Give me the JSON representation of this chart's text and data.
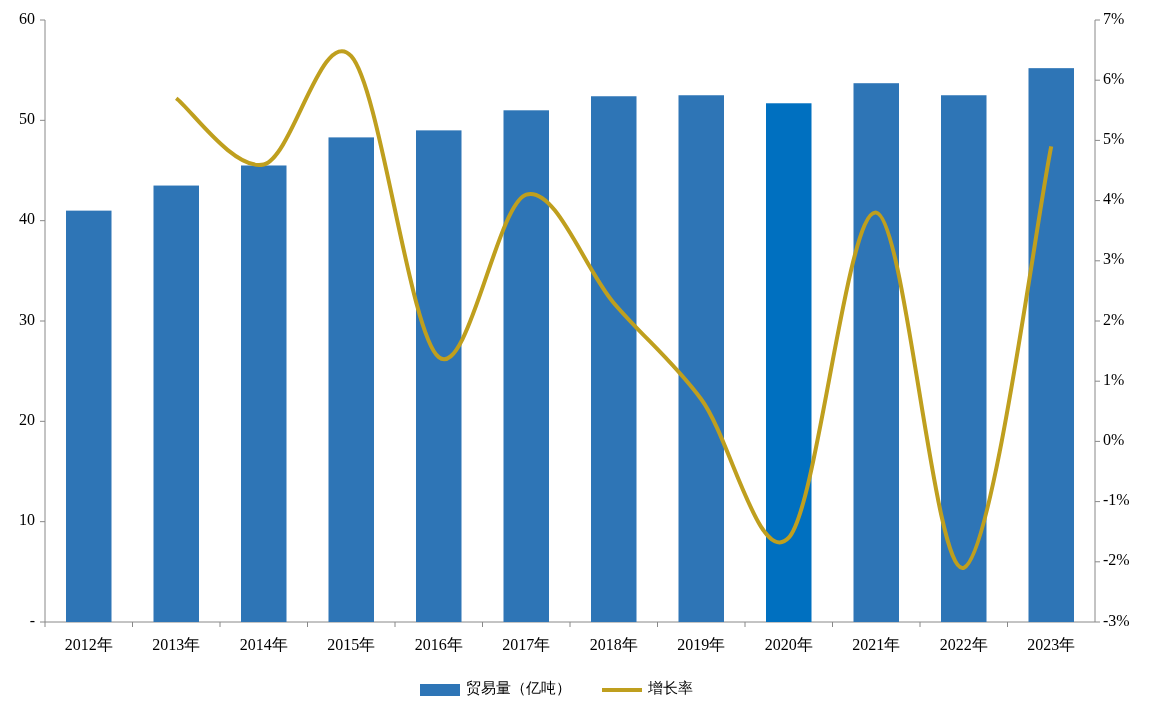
{
  "chart_data": {
    "type": "bar",
    "categories": [
      "2012年",
      "2013年",
      "2014年",
      "2015年",
      "2016年",
      "2017年",
      "2018年",
      "2019年",
      "2020年",
      "2021年",
      "2022年",
      "2023年"
    ],
    "series": [
      {
        "name": "贸易量（亿吨）",
        "color": "#2e75b6",
        "colors": [
          "#2e75b6",
          "#2e75b6",
          "#2e75b6",
          "#2e75b6",
          "#2e75b6",
          "#2e75b6",
          "#2e75b6",
          "#2e75b6",
          "#0070c0",
          "#2e75b6",
          "#2e75b6",
          "#2e75b6"
        ],
        "values": [
          41.0,
          43.5,
          45.5,
          48.3,
          49.0,
          51.0,
          52.4,
          52.5,
          51.7,
          53.7,
          52.5,
          55.2
        ]
      },
      {
        "name": "增长率",
        "type": "line",
        "axis": "y2",
        "color": "#bf9f1e",
        "values": [
          null,
          5.7,
          4.6,
          6.4,
          1.4,
          4.1,
          2.3,
          0.7,
          -1.6,
          3.8,
          -2.1,
          4.9
        ]
      }
    ],
    "ylim": [
      0,
      60
    ],
    "yticks": [
      {
        "value": 0,
        "label": "-"
      },
      10,
      20,
      30,
      40,
      50,
      60
    ],
    "y2lim": [
      -3,
      7
    ],
    "y2ticks": [
      {
        "value": -3,
        "label": "-3%"
      },
      {
        "value": -2,
        "label": "-2%"
      },
      {
        "value": -1,
        "label": "-1%"
      },
      {
        "value": 0,
        "label": "0%"
      },
      {
        "value": 1,
        "label": "1%"
      },
      {
        "value": 2,
        "label": "2%"
      },
      {
        "value": 3,
        "label": "3%"
      },
      {
        "value": 4,
        "label": "4%"
      },
      {
        "value": 5,
        "label": "5%"
      },
      {
        "value": 6,
        "label": "6%"
      },
      {
        "value": 7,
        "label": "7%"
      }
    ],
    "legend": "bottom",
    "grid": false
  }
}
